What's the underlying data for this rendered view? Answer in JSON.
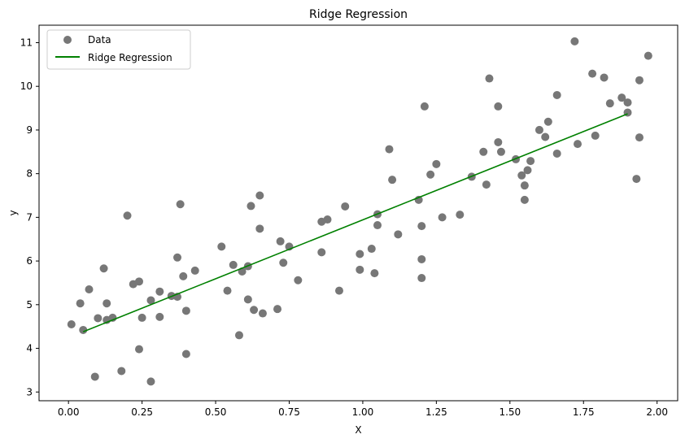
{
  "chart_data": {
    "type": "scatter",
    "title": "Ridge Regression",
    "xlabel": "X",
    "ylabel": "y",
    "xlim": [
      -0.1,
      2.07
    ],
    "ylim": [
      2.8,
      11.4
    ],
    "xticks": [
      0.0,
      0.25,
      0.5,
      0.75,
      1.0,
      1.25,
      1.5,
      1.75,
      2.0
    ],
    "xtick_labels": [
      "0.00",
      "0.25",
      "0.50",
      "0.75",
      "1.00",
      "1.25",
      "1.50",
      "1.75",
      "2.00"
    ],
    "yticks": [
      3,
      4,
      5,
      6,
      7,
      8,
      9,
      10,
      11
    ],
    "ytick_labels": [
      "3",
      "4",
      "5",
      "6",
      "7",
      "8",
      "9",
      "10",
      "11"
    ],
    "grid": false,
    "legend": {
      "position": "top-left",
      "entries": [
        "Data",
        "Ridge Regression"
      ]
    },
    "colors": {
      "data": "#777777",
      "line": "#008000"
    },
    "series": [
      {
        "name": "Data",
        "type": "scatter",
        "points": [
          [
            0.01,
            4.55
          ],
          [
            0.04,
            5.03
          ],
          [
            0.05,
            4.42
          ],
          [
            0.07,
            5.35
          ],
          [
            0.09,
            3.35
          ],
          [
            0.1,
            4.69
          ],
          [
            0.12,
            5.83
          ],
          [
            0.13,
            5.03
          ],
          [
            0.13,
            4.65
          ],
          [
            0.15,
            4.7
          ],
          [
            0.18,
            3.48
          ],
          [
            0.2,
            7.04
          ],
          [
            0.22,
            5.47
          ],
          [
            0.24,
            3.98
          ],
          [
            0.24,
            5.53
          ],
          [
            0.25,
            4.7
          ],
          [
            0.28,
            5.1
          ],
          [
            0.28,
            3.24
          ],
          [
            0.31,
            5.3
          ],
          [
            0.31,
            4.72
          ],
          [
            0.35,
            5.2
          ],
          [
            0.37,
            5.18
          ],
          [
            0.37,
            6.08
          ],
          [
            0.38,
            7.3
          ],
          [
            0.39,
            5.65
          ],
          [
            0.4,
            3.87
          ],
          [
            0.4,
            4.86
          ],
          [
            0.43,
            5.78
          ],
          [
            0.52,
            6.33
          ],
          [
            0.54,
            5.32
          ],
          [
            0.56,
            5.91
          ],
          [
            0.58,
            4.3
          ],
          [
            0.59,
            5.76
          ],
          [
            0.61,
            5.12
          ],
          [
            0.61,
            5.88
          ],
          [
            0.62,
            7.26
          ],
          [
            0.63,
            4.88
          ],
          [
            0.65,
            6.74
          ],
          [
            0.65,
            7.5
          ],
          [
            0.66,
            4.8
          ],
          [
            0.71,
            4.9
          ],
          [
            0.72,
            6.45
          ],
          [
            0.73,
            5.96
          ],
          [
            0.75,
            6.33
          ],
          [
            0.78,
            5.56
          ],
          [
            0.86,
            6.9
          ],
          [
            0.86,
            6.2
          ],
          [
            0.88,
            6.95
          ],
          [
            0.92,
            5.32
          ],
          [
            0.94,
            7.25
          ],
          [
            0.99,
            6.16
          ],
          [
            0.99,
            5.8
          ],
          [
            1.03,
            6.28
          ],
          [
            1.04,
            5.72
          ],
          [
            1.05,
            7.07
          ],
          [
            1.05,
            6.82
          ],
          [
            1.09,
            8.56
          ],
          [
            1.1,
            7.86
          ],
          [
            1.12,
            6.61
          ],
          [
            1.19,
            7.4
          ],
          [
            1.2,
            5.61
          ],
          [
            1.2,
            6.04
          ],
          [
            1.2,
            6.8
          ],
          [
            1.21,
            9.54
          ],
          [
            1.23,
            7.98
          ],
          [
            1.25,
            8.22
          ],
          [
            1.27,
            7.0
          ],
          [
            1.33,
            7.06
          ],
          [
            1.37,
            7.93
          ],
          [
            1.41,
            8.5
          ],
          [
            1.42,
            7.75
          ],
          [
            1.43,
            10.18
          ],
          [
            1.46,
            9.54
          ],
          [
            1.46,
            8.72
          ],
          [
            1.47,
            8.5
          ],
          [
            1.52,
            8.33
          ],
          [
            1.54,
            7.96
          ],
          [
            1.55,
            7.4
          ],
          [
            1.55,
            7.73
          ],
          [
            1.56,
            8.08
          ],
          [
            1.57,
            8.29
          ],
          [
            1.6,
            9.0
          ],
          [
            1.62,
            8.84
          ],
          [
            1.63,
            9.19
          ],
          [
            1.66,
            9.8
          ],
          [
            1.66,
            8.46
          ],
          [
            1.72,
            11.03
          ],
          [
            1.73,
            8.68
          ],
          [
            1.78,
            10.29
          ],
          [
            1.79,
            8.87
          ],
          [
            1.82,
            10.2
          ],
          [
            1.84,
            9.61
          ],
          [
            1.88,
            9.74
          ],
          [
            1.9,
            9.63
          ],
          [
            1.9,
            9.4
          ],
          [
            1.93,
            7.88
          ],
          [
            1.94,
            8.83
          ],
          [
            1.94,
            10.14
          ],
          [
            1.97,
            10.7
          ]
        ]
      },
      {
        "name": "Ridge Regression",
        "type": "line",
        "points": [
          [
            0.05,
            4.38
          ],
          [
            1.9,
            9.37
          ]
        ]
      }
    ]
  }
}
